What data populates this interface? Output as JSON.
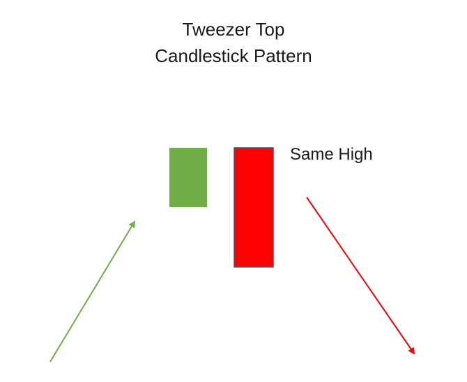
{
  "title": {
    "line1": "Tweezer Top",
    "line2": "Candlestick Pattern"
  },
  "annotation": "Same High",
  "candles": [
    {
      "kind": "bullish",
      "color": "#70ad47"
    },
    {
      "kind": "bearish",
      "color": "#ff0000",
      "border_color": "#44546a"
    }
  ],
  "trend_arrows": [
    {
      "direction": "up",
      "color": "#70ad47"
    },
    {
      "direction": "down",
      "color": "#ff0000"
    }
  ]
}
